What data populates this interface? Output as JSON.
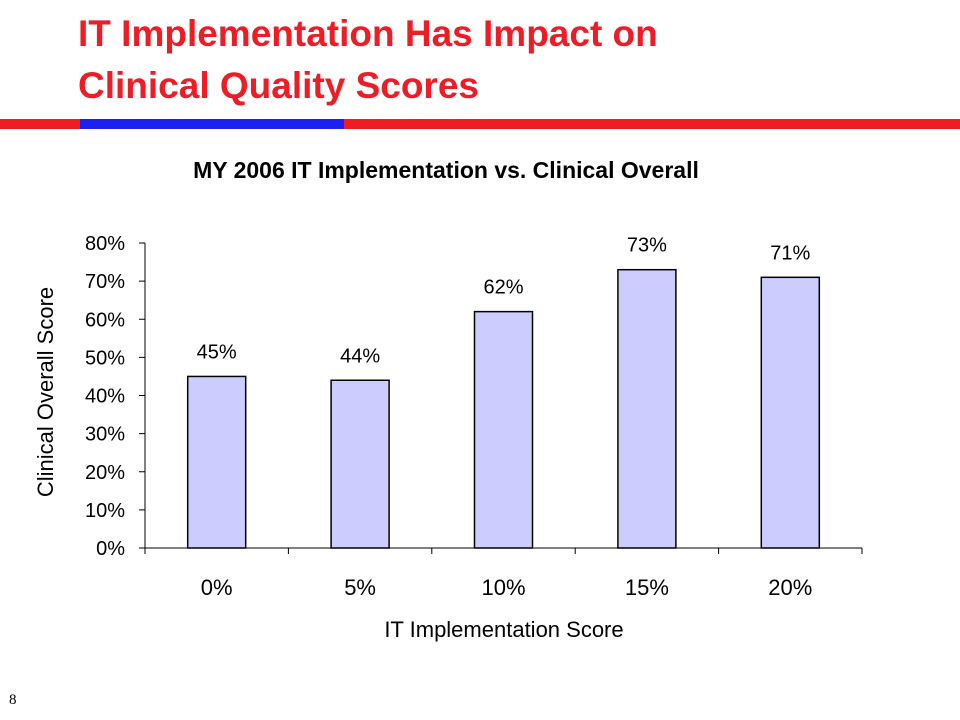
{
  "slide": {
    "title_line1": "IT Implementation Has Impact on",
    "title_line2": "Clinical Quality Scores",
    "page_number": "8",
    "colors": {
      "title": "#ee1c25",
      "rule_red": "#ee1c25",
      "rule_blue": "#1b21ee",
      "bar_fill": "#ccccff",
      "bar_stroke": "#000000"
    }
  },
  "chart_data": {
    "type": "bar",
    "title": "MY 2006 IT Implementation vs. Clinical Overall",
    "xlabel": "IT Implementation Score",
    "ylabel": "Clinical Overall Score",
    "categories": [
      "0%",
      "5%",
      "10%",
      "15%",
      "20%"
    ],
    "values": [
      0.45,
      0.44,
      0.62,
      0.73,
      0.71
    ],
    "data_labels": [
      "45%",
      "44%",
      "62%",
      "73%",
      "71%"
    ],
    "ylim": [
      0,
      0.8
    ],
    "y_ticks": [
      "0%",
      "10%",
      "20%",
      "30%",
      "40%",
      "50%",
      "60%",
      "70%",
      "80%"
    ],
    "grid": false,
    "legend": "none"
  }
}
